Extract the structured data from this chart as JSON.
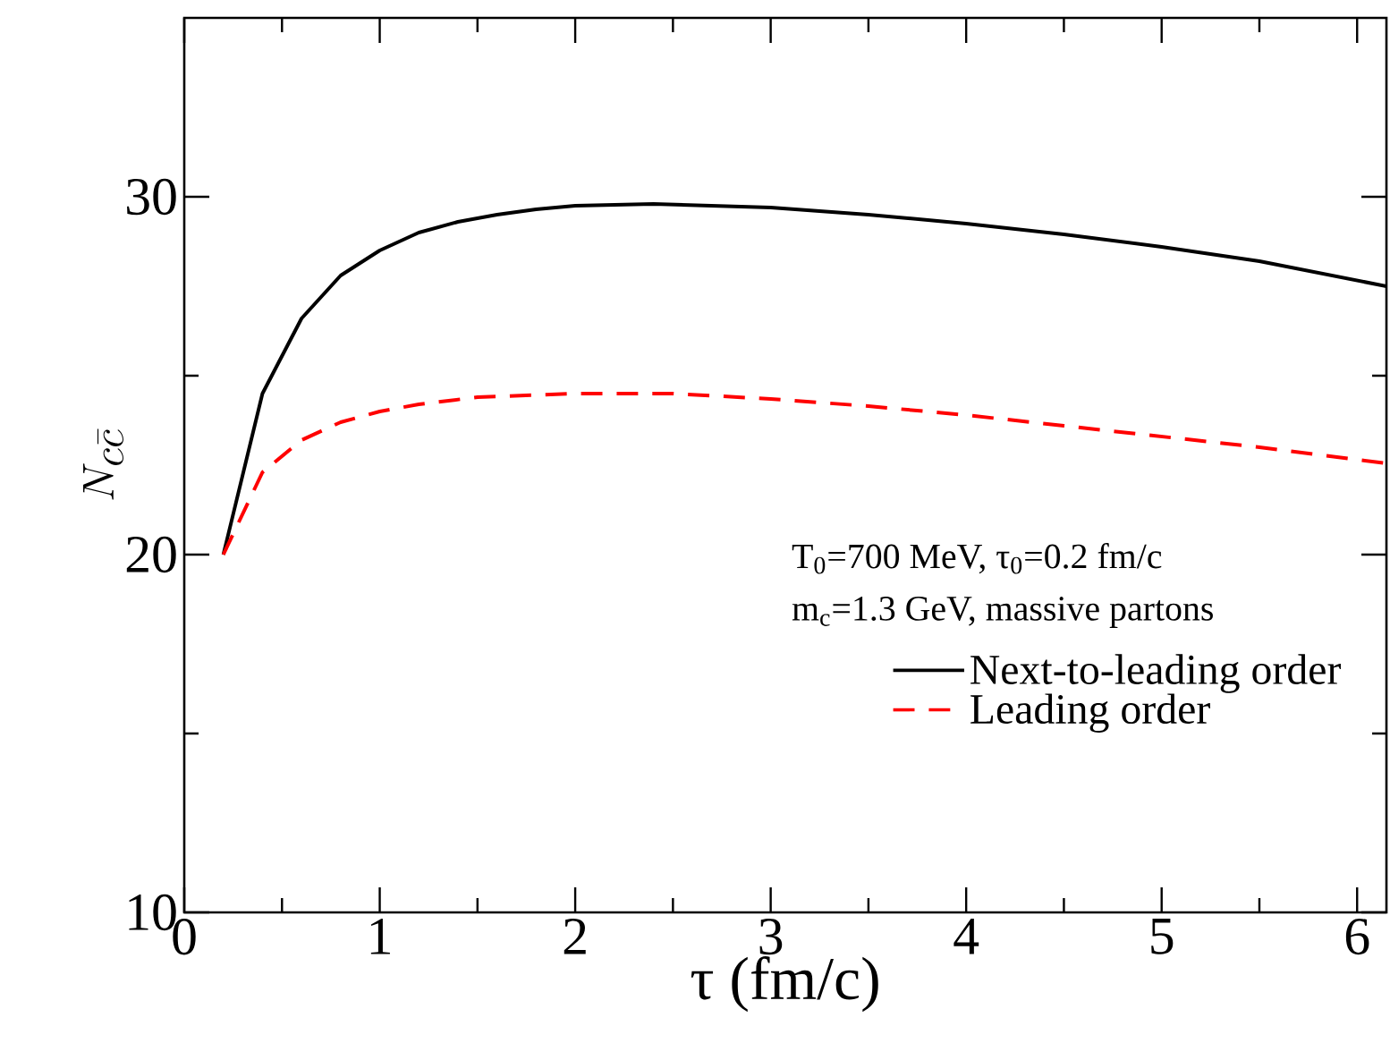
{
  "chart_data": {
    "type": "line",
    "xlabel": "τ (fm/c)",
    "ylabel": "N_{c\\bar{c}}",
    "xlim": [
      0,
      6.15
    ],
    "ylim": [
      10,
      35
    ],
    "xticks": [
      0,
      1,
      2,
      3,
      4,
      5,
      6
    ],
    "yticks": [
      10,
      20,
      30
    ],
    "annotations": [
      "T$_{0}$=700 MeV, τ$_{0}$=0.2 fm/c",
      "m$_{c}$=1.3 GeV, massive partons"
    ],
    "legend": "bottom right",
    "grid": false,
    "marker": "none",
    "series": [
      {
        "name": "Next-to-leading order",
        "color": "#000000",
        "line_style": "solid",
        "x": [
          0.2,
          0.4,
          0.6,
          0.8,
          1.0,
          1.2,
          1.4,
          1.6,
          1.8,
          2.0,
          2.4,
          3.0,
          3.5,
          4.0,
          4.5,
          5.0,
          5.5,
          6.15
        ],
        "values": [
          20,
          24.5,
          26.6,
          27.8,
          28.5,
          29.0,
          29.3,
          29.5,
          29.65,
          29.75,
          29.8,
          29.7,
          29.5,
          29.25,
          28.95,
          28.6,
          28.2,
          27.5
        ]
      },
      {
        "name": "Leading order",
        "color": "#ff0000",
        "line_style": "dashed",
        "x": [
          0.2,
          0.4,
          0.6,
          0.8,
          1.0,
          1.2,
          1.5,
          2.0,
          2.5,
          3.0,
          3.5,
          4.0,
          4.5,
          5.0,
          5.5,
          6.15
        ],
        "values": [
          20,
          22.3,
          23.2,
          23.7,
          24.0,
          24.2,
          24.4,
          24.5,
          24.5,
          24.35,
          24.15,
          23.9,
          23.6,
          23.3,
          23.0,
          22.55
        ]
      }
    ]
  }
}
